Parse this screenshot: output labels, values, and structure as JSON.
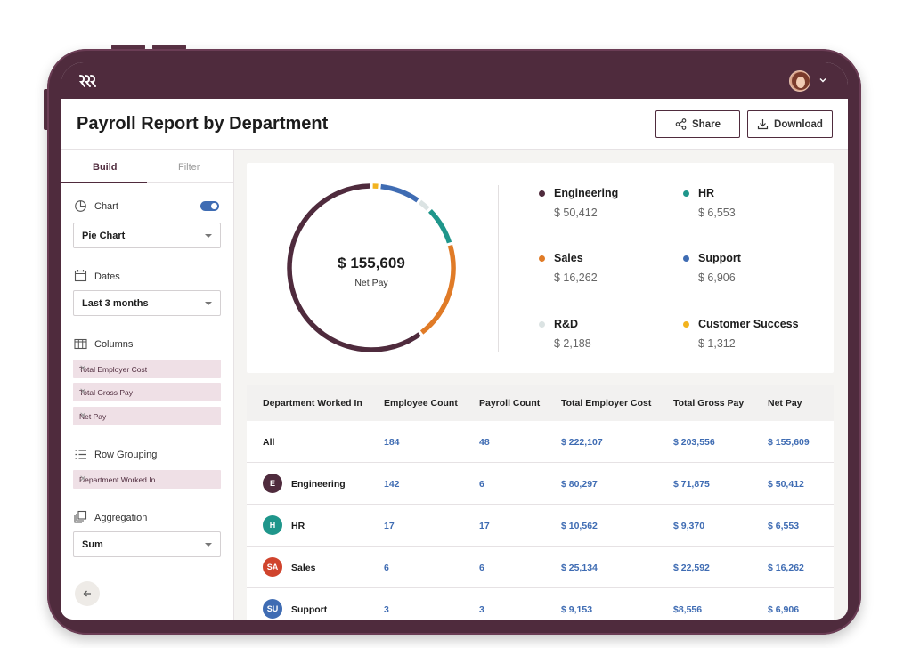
{
  "app": {
    "title": "Payroll Report by Department",
    "share_label": "Share",
    "download_label": "Download"
  },
  "sidebar": {
    "tabs": [
      {
        "label": "Build"
      },
      {
        "label": "Filter"
      }
    ],
    "chart": {
      "label": "Chart",
      "toggle_on": true,
      "selected": "Pie Chart"
    },
    "dates": {
      "label": "Dates",
      "selected": "Last 3 months"
    },
    "columns": {
      "label": "Columns",
      "chips": [
        "Total Employer Cost",
        "Total Gross Pay",
        "Net Pay"
      ]
    },
    "row_grouping": {
      "label": "Row Grouping",
      "chips": [
        "Department Worked In"
      ]
    },
    "aggregation": {
      "label": "Aggregation",
      "selected": "Sum"
    },
    "chip_remove": "✕"
  },
  "summary": {
    "total": "$ 155,609",
    "total_label": "Net Pay",
    "legend": [
      {
        "name": "Engineering",
        "value": "$ 50,412",
        "amount": 50412,
        "color": "#4f2b3d"
      },
      {
        "name": "HR",
        "value": "$ 6,553",
        "amount": 6553,
        "color": "#1f968b"
      },
      {
        "name": "Sales",
        "value": "$ 16,262",
        "amount": 16262,
        "color": "#e07b27"
      },
      {
        "name": "Support",
        "value": "$ 6,906",
        "amount": 6906,
        "color": "#3f6cb3"
      },
      {
        "name": "R&D",
        "value": "$ 2,188",
        "amount": 2188,
        "color": "#dbe3e3"
      },
      {
        "name": "Customer Success",
        "value": "$ 1,312",
        "amount": 1312,
        "color": "#f2b31f"
      }
    ]
  },
  "table": {
    "headers": [
      "Department Worked In",
      "Employee Count",
      "Payroll Count",
      "Total Employer Cost",
      "Total Gross Pay",
      "Net Pay"
    ],
    "rows": [
      {
        "dept": "All",
        "badge": "",
        "badge_color": "",
        "cells": [
          "184",
          "48",
          "$ 222,107",
          "$ 203,556",
          "$ 155,609"
        ]
      },
      {
        "dept": "Engineering",
        "badge": "E",
        "badge_color": "#4f2b3d",
        "cells": [
          "142",
          "6",
          "$ 80,297",
          "$ 71,875",
          "$ 50,412"
        ]
      },
      {
        "dept": "HR",
        "badge": "H",
        "badge_color": "#1f968b",
        "cells": [
          "17",
          "17",
          "$ 10,562",
          "$ 9,370",
          "$ 6,553"
        ]
      },
      {
        "dept": "Sales",
        "badge": "SA",
        "badge_color": "#d0442d",
        "cells": [
          "6",
          "6",
          "$ 25,134",
          "$ 22,592",
          "$ 16,262"
        ]
      },
      {
        "dept": "Support",
        "badge": "SU",
        "badge_color": "#3f6cb3",
        "cells": [
          "3",
          "3",
          "$ 9,153",
          "$8,556",
          "$ 6,906"
        ]
      }
    ]
  },
  "colors": {
    "brand": "#4f2b3d",
    "accent_blue": "#3f6cb3"
  }
}
